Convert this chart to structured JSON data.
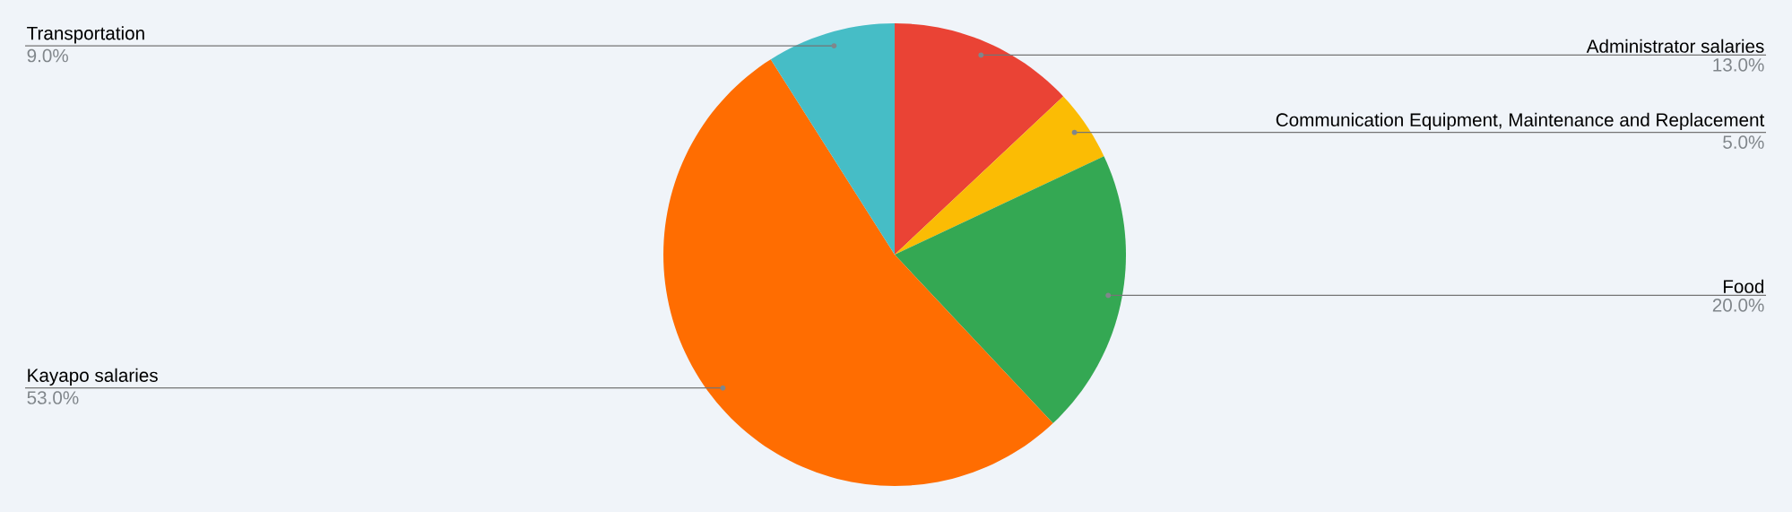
{
  "chart_data": {
    "type": "pie",
    "categories": [
      "Administrator salaries",
      "Communication Equipment, Maintenance and Replacement",
      "Food",
      "Kayapo salaries",
      "Transportation"
    ],
    "values": [
      13,
      5,
      20,
      53,
      9
    ],
    "value_labels": [
      "13.0%",
      "5.0%",
      "20.0%",
      "53.0%",
      "9.0%"
    ],
    "colors": [
      "#ea4335",
      "#fbbc04",
      "#34a853",
      "#ff6d01",
      "#46bdc6"
    ]
  }
}
